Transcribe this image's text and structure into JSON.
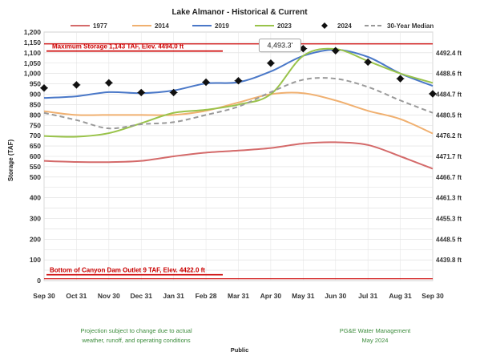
{
  "chart_data": {
    "type": "line",
    "title": "Lake Almanor - Historical & Current",
    "ylabel": "Storage (TAF)",
    "categories": [
      "Sep 30",
      "Oct 31",
      "Nov 30",
      "Dec 31",
      "Jan 31",
      "Feb 28",
      "Mar 31",
      "Apr 30",
      "May 31",
      "Jun 30",
      "Jul 31",
      "Aug 31",
      "Sep 30"
    ],
    "ylim": [
      0,
      1200
    ],
    "yticks": [
      "0",
      "50",
      "100",
      "150",
      "200",
      "250",
      "300",
      "350",
      "400",
      "450",
      "500",
      "550",
      "600",
      "650",
      "700",
      "750",
      "800",
      "850",
      "900",
      "950",
      "1,000",
      "1,050",
      "1,100",
      "1,150",
      "1,200"
    ],
    "yticks_shown": [
      "0",
      "",
      "100",
      "",
      "200",
      "",
      "300",
      "",
      "400",
      "",
      "500",
      "550",
      "600",
      "650",
      "700",
      "750",
      "800",
      "850",
      "900",
      "950",
      "1,000",
      "1,050",
      "1,100",
      "1,150",
      "1,200"
    ],
    "right_axis": [
      {
        "label": "4492.4 ft",
        "y": 1100
      },
      {
        "label": "4488.6 ft",
        "y": 1000
      },
      {
        "label": "4484.7 ft",
        "y": 900
      },
      {
        "label": "4480.5 ft",
        "y": 800
      },
      {
        "label": "4476.2 ft",
        "y": 700
      },
      {
        "label": "4471.7 ft",
        "y": 600
      },
      {
        "label": "4466.7 ft",
        "y": 500
      },
      {
        "label": "4461.3 ft",
        "y": 400
      },
      {
        "label": "4455.3 ft",
        "y": 300
      },
      {
        "label": "4448.5 ft",
        "y": 200
      },
      {
        "label": "4439.8 ft",
        "y": 100
      }
    ],
    "series": [
      {
        "name": "1977",
        "color": "#d46a6a",
        "style": "solid",
        "values": [
          578,
          573,
          572,
          578,
          600,
          618,
          628,
          640,
          662,
          668,
          655,
          600,
          540
        ]
      },
      {
        "name": "2014",
        "color": "#f0b070",
        "style": "solid",
        "values": [
          818,
          800,
          800,
          800,
          800,
          820,
          860,
          900,
          905,
          870,
          820,
          780,
          710
        ]
      },
      {
        "name": "2019",
        "color": "#4a78c8",
        "style": "solid",
        "values": [
          882,
          890,
          910,
          905,
          918,
          952,
          958,
          1010,
          1085,
          1115,
          1080,
          1000,
          940
        ]
      },
      {
        "name": "2023",
        "color": "#99c34a",
        "style": "solid",
        "values": [
          698,
          695,
          712,
          760,
          810,
          825,
          850,
          900,
          1085,
          1118,
          1060,
          1000,
          955
        ]
      },
      {
        "name": "30-Year Median",
        "color": "#999999",
        "style": "dashed",
        "values": [
          810,
          775,
          735,
          755,
          765,
          800,
          840,
          910,
          970,
          975,
          935,
          870,
          810
        ]
      }
    ],
    "points_2024": {
      "name": "2024",
      "marker": "diamond",
      "values": [
        930,
        945,
        955,
        908,
        908,
        958,
        965,
        1050,
        1120,
        1110,
        1055,
        975,
        902
      ]
    },
    "annotations": [
      {
        "text": "4,493.3'",
        "x": "May 31",
        "y": 1143
      },
      {
        "text": "Maximum Storage 1,143 TAF, Elev. 4494.0 ft",
        "y": 1143
      },
      {
        "text": "Bottom of Canyon Dam Outlet 9 TAF, Elev. 4422.0 ft",
        "y": 9
      }
    ],
    "legend_position": "top",
    "grid": true
  },
  "footer": {
    "left_line1": "Projection subject to change due to actual",
    "left_line2": "weather, runoff, and operating conditions",
    "center": "Public",
    "right_line1": "PG&E Water Management",
    "right_line2": "May 2024"
  }
}
